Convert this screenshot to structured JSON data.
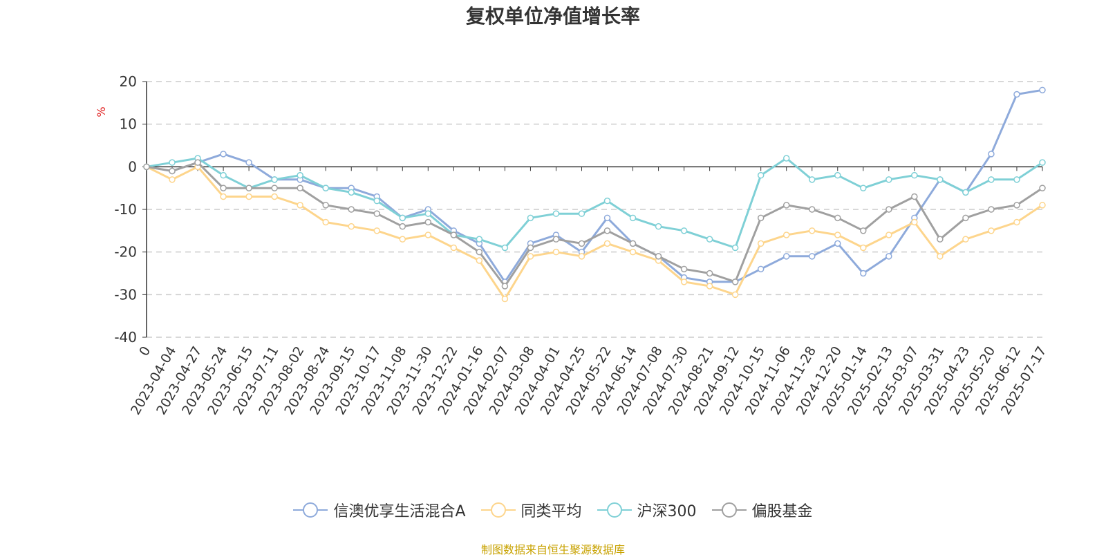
{
  "chart_data": {
    "type": "line",
    "title": "复权单位净值增长率",
    "ylabel": "%",
    "ylim": [
      -40,
      20
    ],
    "yticks": [
      20,
      10,
      0,
      -10,
      -20,
      -30,
      -40
    ],
    "x_ticks": [
      "0",
      "2023-04-04",
      "2023-04-27",
      "2023-05-24",
      "2023-06-15",
      "2023-07-11",
      "2023-08-02",
      "2023-08-24",
      "2023-09-15",
      "2023-10-17",
      "2023-11-08",
      "2023-11-30",
      "2023-12-22",
      "2024-01-16",
      "2024-02-07",
      "2024-03-08",
      "2024-04-01",
      "2024-04-25",
      "2024-05-22",
      "2024-06-14",
      "2024-07-08",
      "2024-07-30",
      "2024-08-21",
      "2024-09-12",
      "2024-10-15",
      "2024-11-06",
      "2024-11-28",
      "2024-12-20",
      "2025-01-14",
      "2025-02-13",
      "2025-03-07",
      "2025-03-31",
      "2025-04-23",
      "2025-05-20",
      "2025-06-12",
      "2025-07-17"
    ],
    "grid": true,
    "legend_position": "bottom",
    "x": [
      "0",
      "2023-04-04",
      "2023-04-27",
      "2023-05-24",
      "2023-06-15",
      "2023-07-11",
      "2023-08-02",
      "2023-08-24",
      "2023-09-15",
      "2023-10-17",
      "2023-11-08",
      "2023-11-30",
      "2023-12-22",
      "2024-01-16",
      "2024-02-07",
      "2024-03-08",
      "2024-04-01",
      "2024-04-25",
      "2024-05-22",
      "2024-06-14",
      "2024-07-08",
      "2024-07-30",
      "2024-08-21",
      "2024-09-12",
      "2024-10-15",
      "2024-11-06",
      "2024-11-28",
      "2024-12-20",
      "2025-01-14",
      "2025-02-13",
      "2025-03-07",
      "2025-03-31",
      "2025-04-23",
      "2025-05-20",
      "2025-06-12",
      "2025-07-17"
    ],
    "series": [
      {
        "name": "信澳优享生活混合A",
        "color": "#8eaadb",
        "values": [
          0,
          -1,
          1,
          3,
          1,
          -3,
          -3,
          -5,
          -5,
          -7,
          -12,
          -10,
          -15,
          -18,
          -27,
          -18,
          -16,
          -20,
          -12,
          -18,
          -21,
          -26,
          -27,
          -27,
          -24,
          -21,
          -21,
          -18,
          -25,
          -21,
          -12,
          -3,
          -6,
          3,
          17,
          18
        ]
      },
      {
        "name": "同类平均",
        "color": "#fdd58c",
        "values": [
          0,
          -3,
          0,
          -7,
          -7,
          -7,
          -9,
          -13,
          -14,
          -15,
          -17,
          -16,
          -19,
          -22,
          -31,
          -21,
          -20,
          -21,
          -18,
          -20,
          -22,
          -27,
          -28,
          -30,
          -18,
          -16,
          -15,
          -16,
          -19,
          -16,
          -13,
          -21,
          -17,
          -15,
          -13,
          -9
        ]
      },
      {
        "name": "沪深300",
        "color": "#7fd0d6",
        "values": [
          0,
          1,
          2,
          -2,
          -5,
          -3,
          -2,
          -5,
          -6,
          -8,
          -12,
          -11,
          -16,
          -17,
          -19,
          -12,
          -11,
          -11,
          -8,
          -12,
          -14,
          -15,
          -17,
          -19,
          -2,
          2,
          -3,
          -2,
          -5,
          -3,
          -2,
          -3,
          -6,
          -3,
          -3,
          1
        ]
      },
      {
        "name": "偏股基金",
        "color": "#a0a0a0",
        "values": [
          0,
          -1,
          1,
          -5,
          -5,
          -5,
          -5,
          -9,
          -10,
          -11,
          -14,
          -13,
          -16,
          -20,
          -28,
          -19,
          -17,
          -18,
          -15,
          -18,
          -21,
          -24,
          -25,
          -27,
          -12,
          -9,
          -10,
          -12,
          -15,
          -10,
          -7,
          -17,
          -12,
          -10,
          -9,
          -5
        ]
      }
    ]
  },
  "legend": {
    "items": [
      {
        "label": "信澳优享生活混合A"
      },
      {
        "label": "同类平均"
      },
      {
        "label": "沪深300"
      },
      {
        "label": "偏股基金"
      }
    ]
  },
  "source_note": "制图数据来自恒生聚源数据库"
}
